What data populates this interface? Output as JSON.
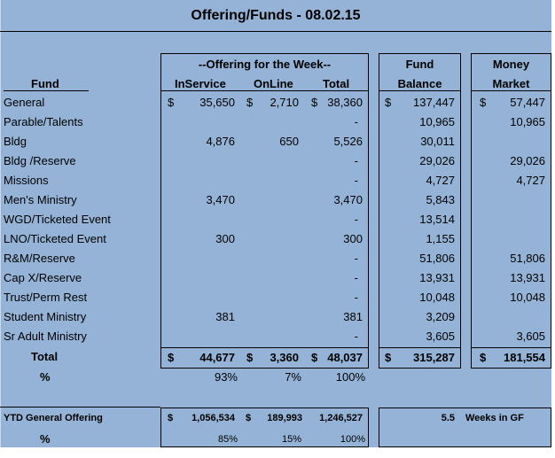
{
  "title": "Offering/Funds - 08.02.15",
  "headers": {
    "fund": "Fund",
    "offering_group": "--Offering for the Week--",
    "inservice": "InService",
    "online": "OnLine",
    "total": "Total",
    "fund_balance_1": "Fund",
    "fund_balance_2": "Balance",
    "money_market_1": "Money",
    "money_market_2": "Market"
  },
  "currency": "$",
  "rows": [
    {
      "fund": "General",
      "inservice": "35,650",
      "online": "2,710",
      "total": "38,360",
      "balance": "137,447",
      "mm": "57,447"
    },
    {
      "fund": "Parable/Talents",
      "inservice": "",
      "online": "",
      "total": "-",
      "balance": "10,965",
      "mm": "10,965"
    },
    {
      "fund": "Bldg",
      "inservice": "4,876",
      "online": "650",
      "total": "5,526",
      "balance": "30,011",
      "mm": ""
    },
    {
      "fund": "Bldg /Reserve",
      "inservice": "",
      "online": "",
      "total": "-",
      "balance": "29,026",
      "mm": "29,026"
    },
    {
      "fund": "Missions",
      "inservice": "",
      "online": "",
      "total": "-",
      "balance": "4,727",
      "mm": "4,727"
    },
    {
      "fund": "Men's Ministry",
      "inservice": "3,470",
      "online": "",
      "total": "3,470",
      "balance": "5,843",
      "mm": ""
    },
    {
      "fund": "WGD/Ticketed Event",
      "inservice": "",
      "online": "",
      "total": "-",
      "balance": "13,514",
      "mm": ""
    },
    {
      "fund": "LNO/Ticketed Event",
      "inservice": "300",
      "online": "",
      "total": "300",
      "balance": "1,155",
      "mm": ""
    },
    {
      "fund": "R&M/Reserve",
      "inservice": "",
      "online": "",
      "total": "-",
      "balance": "51,806",
      "mm": "51,806"
    },
    {
      "fund": "Cap X/Reserve",
      "inservice": "",
      "online": "",
      "total": "-",
      "balance": "13,931",
      "mm": "13,931"
    },
    {
      "fund": "Trust/Perm Rest",
      "inservice": "",
      "online": "",
      "total": "-",
      "balance": "10,048",
      "mm": "10,048"
    },
    {
      "fund": "Student Ministry",
      "inservice": "381",
      "online": "",
      "total": "381",
      "balance": "3,209",
      "mm": ""
    },
    {
      "fund": "Sr Adult Ministry",
      "inservice": "",
      "online": "",
      "total": "-",
      "balance": "3,605",
      "mm": "3,605"
    }
  ],
  "totals": {
    "label": "Total",
    "inservice": "44,677",
    "online": "3,360",
    "total": "48,037",
    "balance": "315,287",
    "mm": "181,554"
  },
  "percent": {
    "label": "%",
    "inservice": "93%",
    "online": "7%",
    "total": "100%"
  },
  "ytd": {
    "label": "YTD General Offering",
    "inservice": "1,056,534",
    "online": "189,993",
    "total": "1,246,527",
    "weeks_value": "5.5",
    "weeks_label": "Weeks in GF",
    "pct_label": "%",
    "pct_inservice": "85%",
    "pct_online": "15%",
    "pct_total": "100%"
  }
}
